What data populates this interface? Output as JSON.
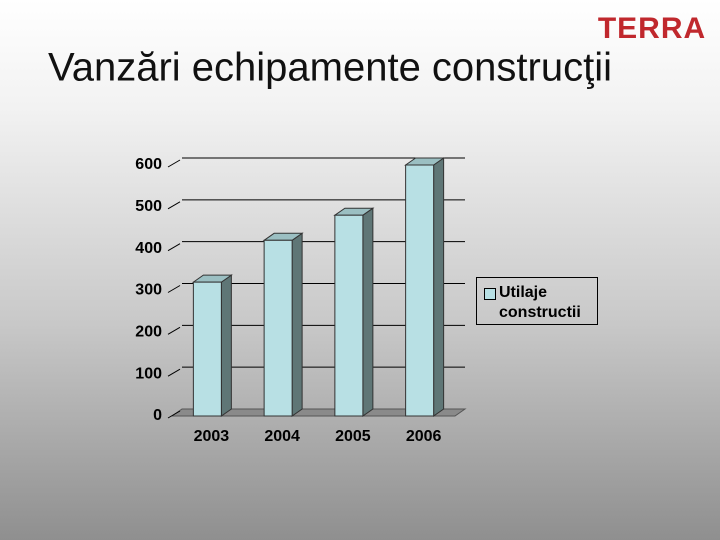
{
  "logo": "TERRA",
  "chart_data": {
    "type": "bar3d",
    "title": "Vanzări echipamente construcţii",
    "categories": [
      "2003",
      "2004",
      "2005",
      "2006"
    ],
    "series": [
      {
        "name": "Utilaje constructii",
        "color": "#b8e0e4",
        "values": [
          320,
          420,
          480,
          600
        ]
      }
    ],
    "ylim": [
      0,
      600
    ],
    "yticks": [
      0,
      100,
      200,
      300,
      400,
      500,
      600
    ],
    "grid": true,
    "legend": "right"
  }
}
